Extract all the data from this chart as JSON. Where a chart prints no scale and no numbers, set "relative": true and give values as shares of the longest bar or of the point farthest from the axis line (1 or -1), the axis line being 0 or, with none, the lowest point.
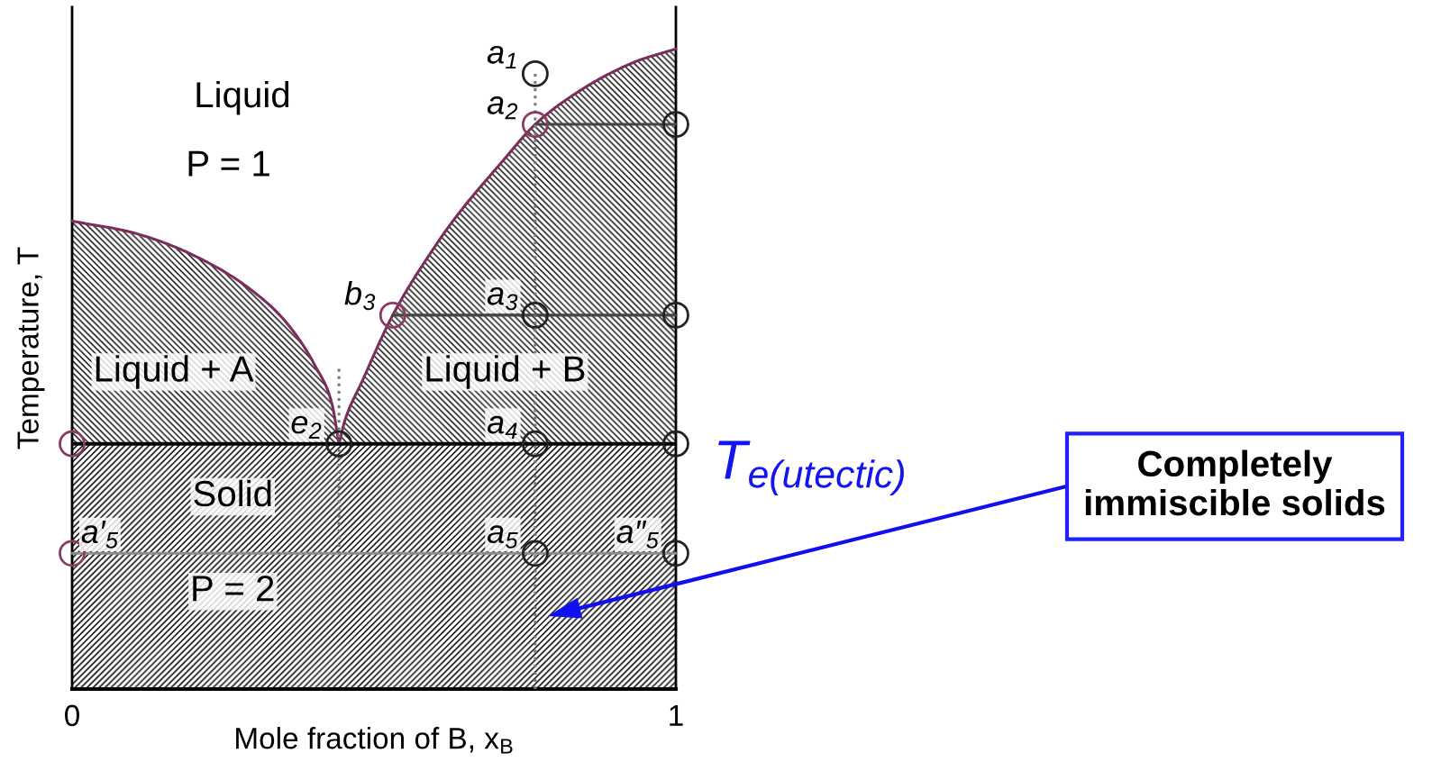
{
  "chart_data": {
    "type": "line",
    "xlabel": "Mole fraction of B, x$_{B}$",
    "ylabel": "Temperature, T",
    "relative": true,
    "xlim": [
      0,
      1
    ],
    "xticks": [
      0,
      1
    ],
    "tick_labels": "x",
    "series": [
      {
        "type": "line",
        "color": "#7b2d5b",
        "line_style": "solid",
        "x": [
          0,
          0.108,
          0.2,
          0.293,
          0.357,
          0.403,
          0.431,
          0.442
        ],
        "values": [
          0.731,
          0.711,
          0.678,
          0.626,
          0.57,
          0.504,
          0.443,
          0.383
        ],
        "lower": [
          0.383,
          0.383,
          0.383,
          0.383,
          0.383,
          0.383,
          0.383,
          0.383
        ],
        "upper": [
          0.731,
          0.711,
          0.678,
          0.626,
          0.57,
          0.504,
          0.443,
          0.383
        ]
      },
      {
        "type": "line",
        "color": "#7b2d5b",
        "line_style": "solid",
        "x": [
          0.442,
          0.452,
          0.48,
          0.531,
          0.6,
          0.642,
          0.707,
          0.767,
          0.845,
          0.928,
          1
        ],
        "values": [
          0.383,
          0.42,
          0.48,
          0.584,
          0.69,
          0.745,
          0.818,
          0.882,
          0.937,
          0.978,
          1
        ],
        "lower": [
          0.383,
          0.383,
          0.383,
          0.383,
          0.383,
          0.383,
          0.383,
          0.383,
          0.383,
          0.383,
          0.383
        ],
        "upper": [
          0.383,
          0.42,
          0.48,
          0.584,
          0.69,
          0.745,
          0.818,
          0.882,
          0.937,
          0.978,
          1
        ]
      },
      {
        "type": "line",
        "color": "#444444",
        "line_style": "solid",
        "x": [
          0.767,
          1
        ],
        "values": [
          0.882,
          0.882
        ]
      },
      {
        "type": "line",
        "color": "#444444",
        "line_style": "solid",
        "x": [
          0.531,
          1
        ],
        "values": [
          0.584,
          0.584
        ]
      },
      {
        "type": "line",
        "color": "#8c8c8c",
        "line_style": "solid",
        "x": [
          0,
          1
        ],
        "values": [
          0.212,
          0.212
        ]
      },
      {
        "type": "line",
        "color": "#777777",
        "line_style": "dotted",
        "x": [
          0.767,
          0.767
        ],
        "values": [
          0.961,
          0
        ]
      },
      {
        "type": "line",
        "color": "#777777",
        "line_style": "dotted",
        "x": [
          0.442,
          0.442
        ],
        "values": [
          0.5,
          0.212
        ]
      },
      {
        "type": "scatter",
        "marker": "circle",
        "x": [
          0.767,
          0.767,
          1,
          0.531,
          0.767,
          1,
          0,
          0.442,
          0.767,
          1,
          0,
          0.767,
          1
        ],
        "values": [
          0.961,
          0.882,
          0.882,
          0.584,
          0.584,
          0.584,
          0.383,
          0.383,
          0.383,
          0.383,
          0.212,
          0.212,
          0.212
        ],
        "colors": [
          "#222222",
          "#8b3a62",
          "#222222",
          "#8b3a62",
          "#222222",
          "#222222",
          "#8b3a62",
          "#222222",
          "#222222",
          "#222222",
          "#8b3a62",
          "#222222",
          "#222222"
        ]
      }
    ],
    "ref_lines": [
      {
        "axis": "y",
        "value": 0.383,
        "label": "T$_{e(utectic)}$",
        "color": "#000000"
      }
    ],
    "bands": [
      {
        "axis": "y",
        "from": 0,
        "to": 0.383,
        "color": "#000000"
      }
    ],
    "annotations": [
      "Liquid",
      "P = 1",
      "Liquid + A",
      "Liquid + B",
      "Solid",
      "P = 2",
      {
        "text": "a$_{1}$",
        "x": 0.767,
        "y": 0.961
      },
      {
        "text": "a$_{2}$",
        "x": 0.767,
        "y": 0.882
      },
      {
        "text": "b$_{3}$",
        "x": 0.531,
        "y": 0.584
      },
      {
        "text": "a$_{3}$",
        "x": 0.767,
        "y": 0.584
      },
      {
        "text": "e$_{2}$",
        "x": 0.442,
        "y": 0.383
      },
      {
        "text": "a$_{4}$",
        "x": 0.767,
        "y": 0.383
      },
      {
        "text": "a′$_{5}$",
        "x": 0,
        "y": 0.212
      },
      {
        "text": "a$_{5}$",
        "x": 0.767,
        "y": 0.212
      },
      {
        "text": "a″$_{5}$",
        "x": 1,
        "y": 0.212
      },
      "Completely\nimmiscible solids"
    ]
  }
}
